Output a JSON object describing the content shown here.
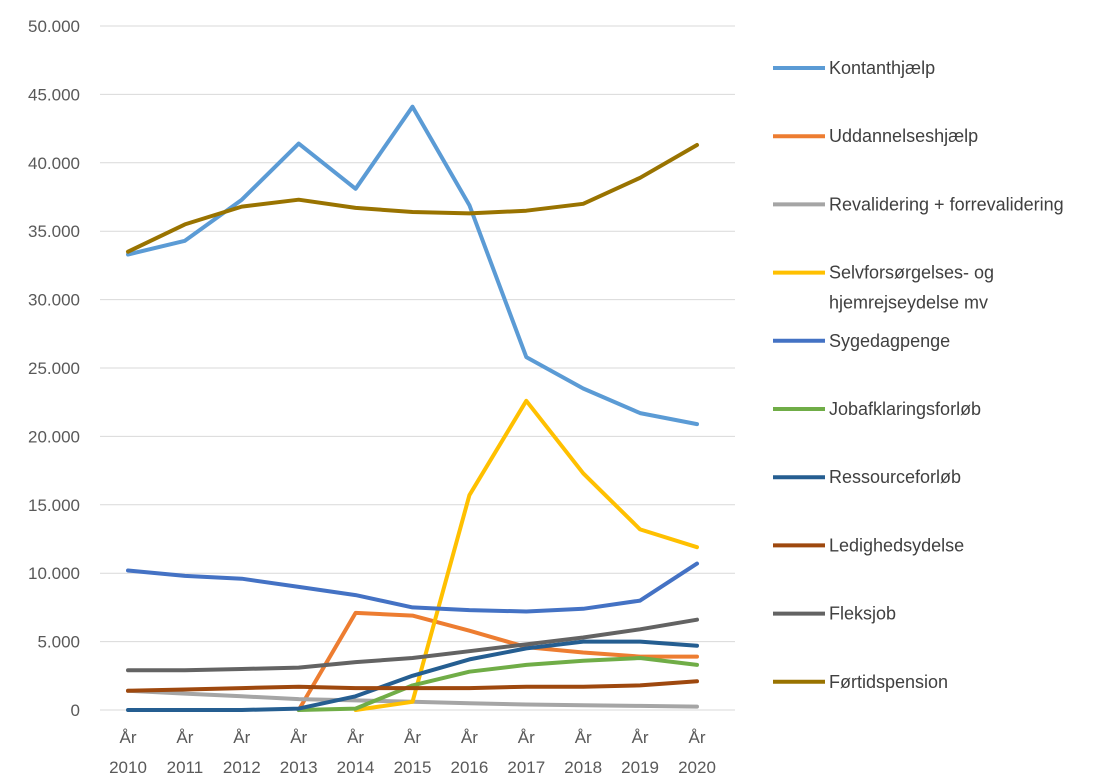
{
  "chart_data": {
    "type": "line",
    "title": "",
    "xlabel": "",
    "ylabel": "",
    "ylim": [
      0,
      50000
    ],
    "y_ticks": [
      0,
      5000,
      10000,
      15000,
      20000,
      25000,
      30000,
      35000,
      40000,
      45000,
      50000
    ],
    "y_tick_labels": [
      "0",
      "5.000",
      "10.000",
      "15.000",
      "20.000",
      "25.000",
      "30.000",
      "35.000",
      "40.000",
      "45.000",
      "50.000"
    ],
    "grid": true,
    "legend_position": "right",
    "categories": [
      {
        "line1": "År",
        "line2": "2010"
      },
      {
        "line1": "År",
        "line2": "2011"
      },
      {
        "line1": "År",
        "line2": "2012"
      },
      {
        "line1": "År",
        "line2": "2013"
      },
      {
        "line1": "År",
        "line2": "2014"
      },
      {
        "line1": "År",
        "line2": "2015"
      },
      {
        "line1": "År",
        "line2": "2016"
      },
      {
        "line1": "År",
        "line2": "2017"
      },
      {
        "line1": "År",
        "line2": "2018"
      },
      {
        "line1": "År",
        "line2": "2019"
      },
      {
        "line1": "År",
        "line2": "2020"
      }
    ],
    "series": [
      {
        "name": "Kontanthjælp",
        "color": "#5b9bd5",
        "values": [
          33300,
          34300,
          37300,
          41400,
          38100,
          44100,
          36900,
          25800,
          23500,
          21700,
          20900
        ]
      },
      {
        "name": "Uddannelseshjælp",
        "color": "#ed7d31",
        "values": [
          null,
          null,
          null,
          0,
          7100,
          6900,
          5800,
          4600,
          4200,
          3900,
          3900
        ]
      },
      {
        "name": "Revalidering + forrevalidering",
        "color": "#a5a5a5",
        "values": [
          1400,
          1200,
          1000,
          800,
          700,
          600,
          500,
          400,
          350,
          300,
          250
        ]
      },
      {
        "name": "Selvforsørgelses- og hjemrejseydelse mv",
        "color": "#ffc000",
        "values": [
          null,
          null,
          null,
          null,
          0,
          600,
          15700,
          22600,
          17300,
          13200,
          11900
        ]
      },
      {
        "name": "Sygedagpenge",
        "color": "#4472c4",
        "values": [
          10200,
          9800,
          9600,
          9000,
          8400,
          7500,
          7300,
          7200,
          7400,
          8000,
          10700
        ]
      },
      {
        "name": "Jobafklaringsforløb",
        "color": "#70ad47",
        "values": [
          null,
          null,
          null,
          0,
          100,
          1800,
          2800,
          3300,
          3600,
          3800,
          3300
        ]
      },
      {
        "name": "Ressourceforløb",
        "color": "#255e91",
        "values": [
          0,
          0,
          0,
          100,
          1000,
          2500,
          3700,
          4500,
          5000,
          5000,
          4700
        ]
      },
      {
        "name": "Ledighedsydelse",
        "color": "#9e480e",
        "values": [
          1400,
          1500,
          1600,
          1700,
          1600,
          1600,
          1600,
          1700,
          1700,
          1800,
          2100
        ]
      },
      {
        "name": "Fleksjob",
        "color": "#636363",
        "values": [
          2900,
          2900,
          3000,
          3100,
          3500,
          3800,
          4300,
          4800,
          5300,
          5900,
          6600
        ]
      },
      {
        "name": "Førtidspension",
        "color": "#997300",
        "values": [
          33500,
          35500,
          36800,
          37300,
          36700,
          36400,
          36300,
          36500,
          37000,
          38900,
          41300
        ]
      }
    ],
    "legend": [
      {
        "lines": [
          "Kontanthjælp"
        ],
        "color": "#5b9bd5"
      },
      {
        "lines": [
          "Uddannelseshjælp"
        ],
        "color": "#ed7d31"
      },
      {
        "lines": [
          "Revalidering + forrevalidering"
        ],
        "color": "#a5a5a5"
      },
      {
        "lines": [
          "Selvforsørgelses- og",
          "hjemrejseydelse mv"
        ],
        "color": "#ffc000"
      },
      {
        "lines": [
          "Sygedagpenge"
        ],
        "color": "#4472c4"
      },
      {
        "lines": [
          "Jobafklaringsforløb"
        ],
        "color": "#70ad47"
      },
      {
        "lines": [
          "Ressourceforløb"
        ],
        "color": "#255e91"
      },
      {
        "lines": [
          "Ledighedsydelse"
        ],
        "color": "#9e480e"
      },
      {
        "lines": [
          "Fleksjob"
        ],
        "color": "#636363"
      },
      {
        "lines": [
          "Førtidspension"
        ],
        "color": "#997300"
      }
    ]
  }
}
